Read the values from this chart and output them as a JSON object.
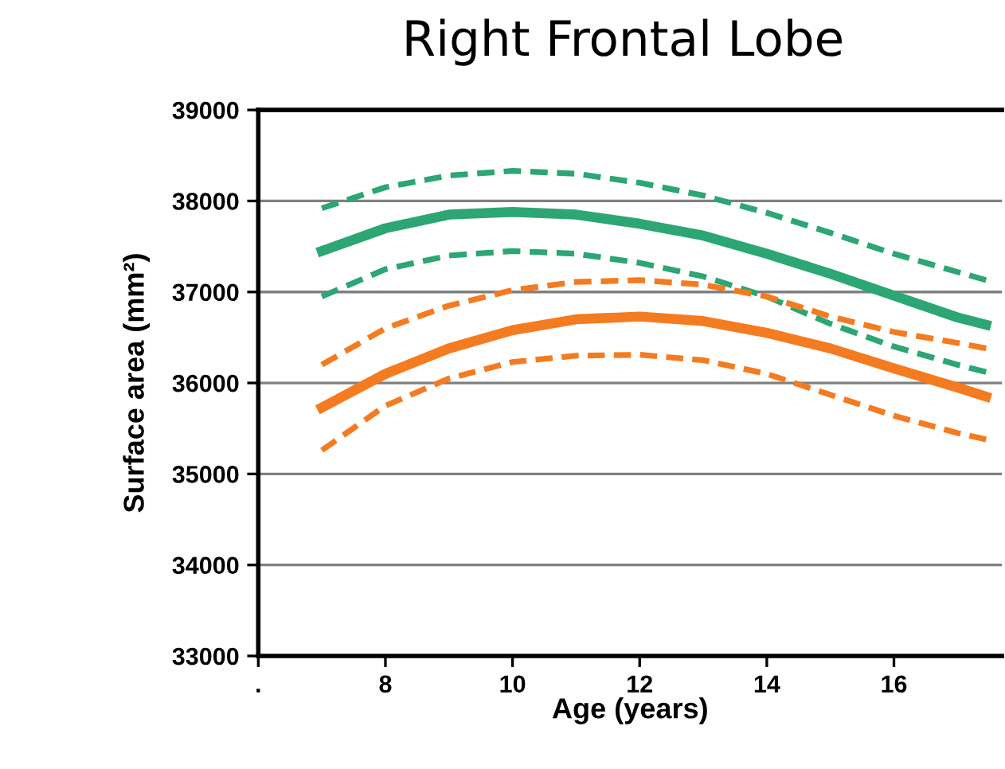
{
  "chart_data": {
    "type": "line",
    "title": "Right Frontal Lobe",
    "xlabel": "Age (years)",
    "ylabel": "Surface area (mm²)",
    "x": [
      7,
      8,
      9,
      10,
      11,
      12,
      13,
      14,
      15,
      16,
      17,
      17.45
    ],
    "series": [
      {
        "color": "#2ca673",
        "line_style": "dashed",
        "values": [
          37920,
          38150,
          38280,
          38330,
          38300,
          38200,
          38060,
          37870,
          37650,
          37420,
          37220,
          37130
        ]
      },
      {
        "color": "#2ca673",
        "line_style": "solid",
        "values": [
          37450,
          37700,
          37850,
          37880,
          37850,
          37750,
          37620,
          37420,
          37200,
          36960,
          36720,
          36640
        ]
      },
      {
        "color": "#2ca673",
        "line_style": "dashed",
        "values": [
          36950,
          37250,
          37400,
          37450,
          37420,
          37320,
          37170,
          36950,
          36650,
          36400,
          36200,
          36120
        ]
      },
      {
        "color": "#f47b20",
        "line_style": "dashed",
        "values": [
          36200,
          36600,
          36850,
          37020,
          37110,
          37130,
          37080,
          36950,
          36730,
          36560,
          36440,
          36380
        ]
      },
      {
        "color": "#f47b20",
        "line_style": "solid",
        "values": [
          35730,
          36100,
          36380,
          36580,
          36700,
          36730,
          36680,
          36550,
          36380,
          36160,
          35950,
          35850
        ]
      },
      {
        "color": "#f47b20",
        "line_style": "dashed",
        "values": [
          35260,
          35750,
          36050,
          36230,
          36300,
          36310,
          36250,
          36100,
          35870,
          35640,
          35450,
          35380
        ]
      }
    ],
    "xlim": [
      6,
      17.7
    ],
    "xticks": [
      {
        "value": 6,
        "label": "."
      },
      8,
      10,
      12,
      14,
      16
    ],
    "ylim": [
      33000,
      39000
    ],
    "yticks": [
      33000,
      34000,
      35000,
      36000,
      37000,
      38000,
      39000
    ],
    "grid": "y",
    "legend": false
  }
}
